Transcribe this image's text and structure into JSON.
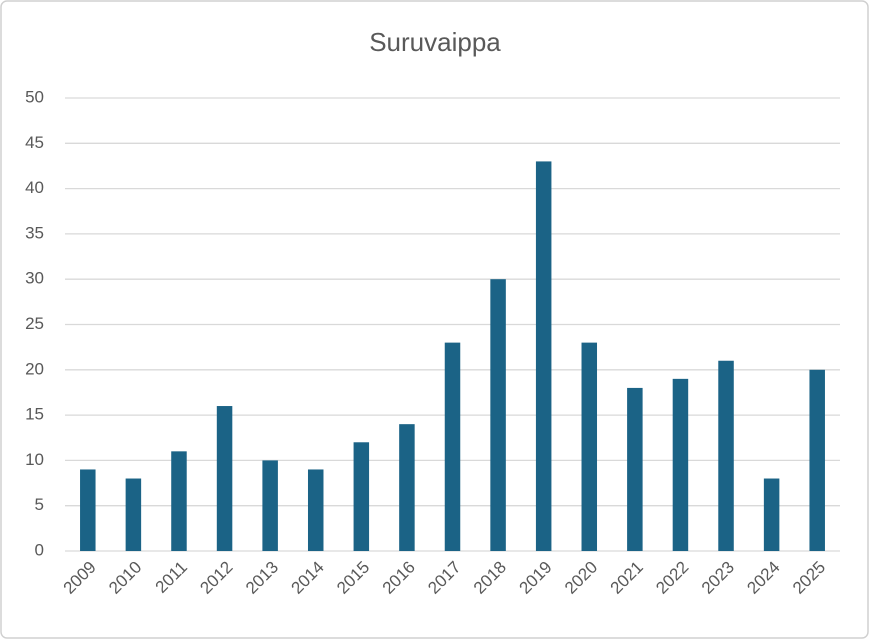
{
  "chart_data": {
    "type": "bar",
    "title": "Suruvaippa",
    "categories": [
      "2009",
      "2010",
      "2011",
      "2012",
      "2013",
      "2014",
      "2015",
      "2016",
      "2017",
      "2018",
      "2019",
      "2020",
      "2021",
      "2022",
      "2023",
      "2024",
      "2025"
    ],
    "values": [
      9,
      8,
      11,
      16,
      10,
      9,
      12,
      14,
      23,
      30,
      43,
      23,
      18,
      19,
      21,
      8,
      20
    ],
    "color": "#1b6386",
    "ylim": [
      0,
      50
    ],
    "yticks": [
      0,
      5,
      10,
      15,
      20,
      25,
      30,
      35,
      40,
      45,
      50
    ],
    "grid": true
  }
}
